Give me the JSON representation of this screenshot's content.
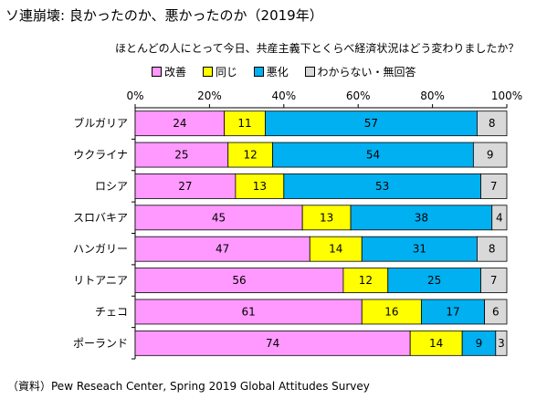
{
  "title": "ソ連崩壊: 良かったのか、悪かったのか（2019年）",
  "subtitle": "ほとんどの人にとって今日、共産主義下とくらべ経済状況はどう変わりましたか？",
  "source": "（資料）Pew Reseach Center, Spring 2019 Global Attitudes Survey",
  "colors": {
    "improved": "#ff99ff",
    "same": "#ffff00",
    "worse": "#00b0f0",
    "unknown": "#d9d9d9"
  },
  "chart_data": {
    "type": "bar",
    "orientation": "horizontal",
    "stacked": "percent",
    "title": "ソ連崩壊: 良かったのか、悪かったのか（2019年）",
    "subtitle": "ほとんどの人にとって今日、共産主義下とくらべ経済状況はどう変わりましたか？",
    "xlim": [
      0,
      100
    ],
    "x_ticks": [
      "0%",
      "20%",
      "40%",
      "60%",
      "80%",
      "100%"
    ],
    "legend_position": "top",
    "categories": [
      "ブルガリア",
      "ウクライナ",
      "ロシア",
      "スロバキア",
      "ハンガリー",
      "リトアニア",
      "チェコ",
      "ポーランド"
    ],
    "series": [
      {
        "name": "改善",
        "key": "improved",
        "values": [
          24,
          25,
          27,
          45,
          47,
          56,
          61,
          74
        ]
      },
      {
        "name": "同じ",
        "key": "same",
        "values": [
          11,
          12,
          13,
          13,
          14,
          12,
          16,
          14
        ]
      },
      {
        "name": "悪化",
        "key": "worse",
        "values": [
          57,
          54,
          53,
          38,
          31,
          25,
          17,
          9
        ]
      },
      {
        "name": "わからない・無回答",
        "key": "unknown",
        "values": [
          8,
          9,
          7,
          4,
          8,
          7,
          6,
          3
        ]
      }
    ]
  }
}
